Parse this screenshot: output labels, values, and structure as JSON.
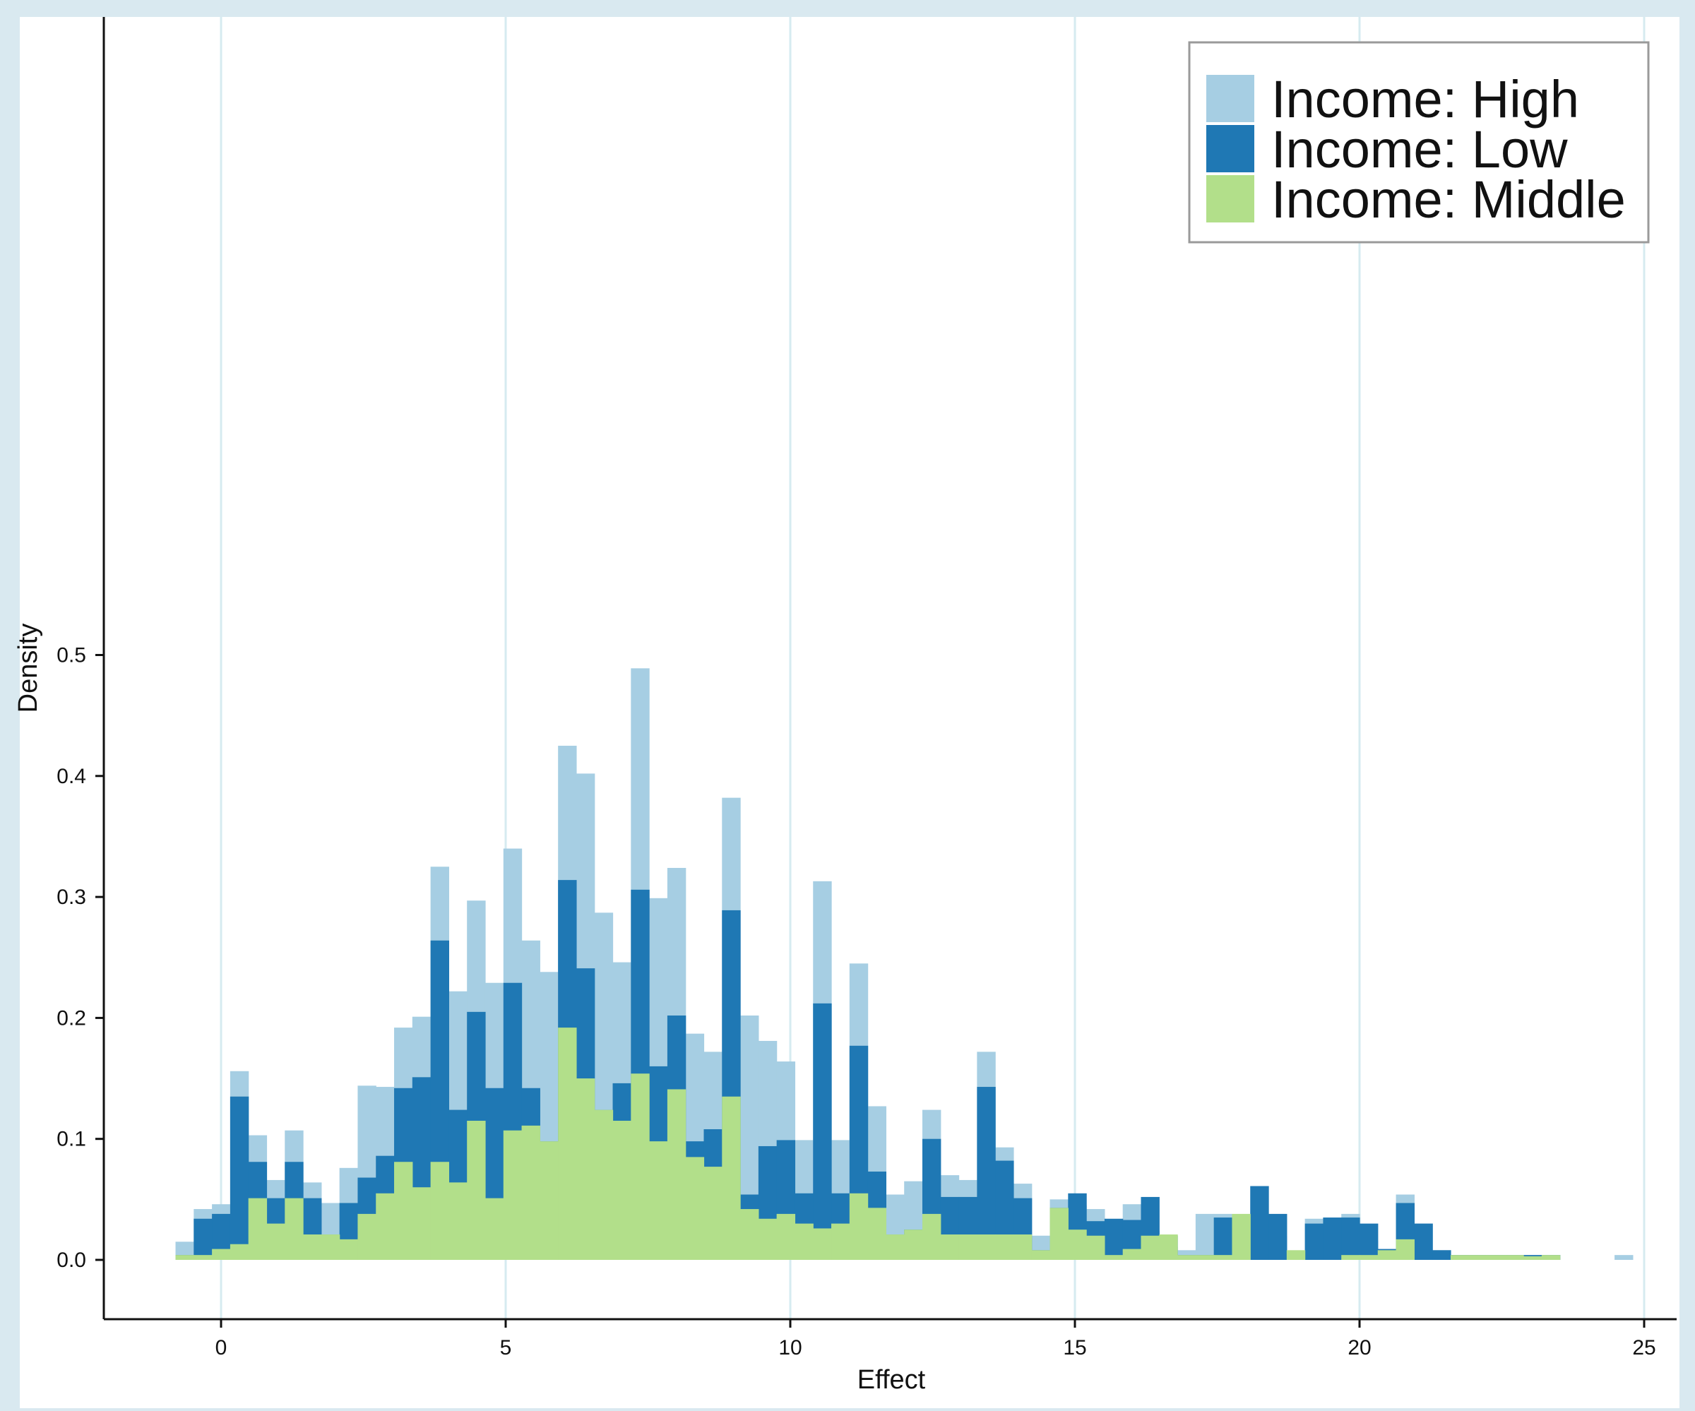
{
  "chart_data": {
    "type": "bar",
    "stacked": false,
    "overlaid": true,
    "bin_width": 0.32,
    "x_start": -0.8,
    "xlabel": "Effect",
    "ylabel": "Density",
    "xlim": [
      -2,
      26
    ],
    "ylim": [
      -0.025,
      0.535
    ],
    "x_ticks": [
      0,
      5,
      10,
      15,
      20,
      25
    ],
    "x_tick_labels": [
      "0",
      "5",
      "10",
      "15",
      "20",
      "25"
    ],
    "y_ticks": [
      0,
      0.1,
      0.2,
      0.3,
      0.4,
      0.5
    ],
    "y_tick_labels": [
      "0.0",
      "0.1",
      "0.2",
      "0.3",
      "0.4",
      "0.5"
    ],
    "grid": "vertical",
    "legend_position": "top-right",
    "series": [
      {
        "name": "Income: High",
        "color": "#a6cee3",
        "values": [
          0.015,
          0.042,
          0.046,
          0.156,
          0.103,
          0.066,
          0.107,
          0.064,
          0.047,
          0.076,
          0.144,
          0.143,
          0.192,
          0.201,
          0.325,
          0.222,
          0.297,
          0.229,
          0.34,
          0.264,
          0.238,
          0.425,
          0.402,
          0.287,
          0.246,
          0.489,
          0.299,
          0.324,
          0.187,
          0.172,
          0.382,
          0.202,
          0.181,
          0.164,
          0.099,
          0.313,
          0.099,
          0.245,
          0.127,
          0.054,
          0.065,
          0.124,
          0.07,
          0.066,
          0.172,
          0.093,
          0.063,
          0.02,
          0.05,
          0.045,
          0.042,
          0.013,
          0.046,
          0.024,
          0.011,
          0.008,
          0.038,
          0.038,
          0,
          0.03,
          0.02,
          0.007,
          0.034,
          0.035,
          0.038,
          0.016,
          0.007,
          0.054,
          0.03,
          0.008,
          0.004,
          0.004,
          0.004,
          0.004,
          0.004,
          0.004,
          0,
          0,
          0,
          0.004
        ]
      },
      {
        "name": "Income: Low",
        "color": "#1f78b4",
        "values": [
          0.004,
          0.034,
          0.038,
          0.135,
          0.081,
          0.051,
          0.081,
          0.051,
          0.021,
          0.047,
          0.068,
          0.086,
          0.142,
          0.151,
          0.264,
          0.124,
          0.205,
          0.142,
          0.229,
          0.142,
          0.098,
          0.314,
          0.241,
          0.124,
          0.146,
          0.306,
          0.16,
          0.202,
          0.098,
          0.108,
          0.289,
          0.054,
          0.094,
          0.099,
          0.055,
          0.212,
          0.055,
          0.177,
          0.073,
          0.021,
          0.025,
          0.1,
          0.052,
          0.052,
          0.143,
          0.082,
          0.051,
          0.008,
          0.043,
          0.055,
          0.032,
          0.034,
          0.033,
          0.052,
          0.02,
          0.004,
          0.004,
          0.035,
          0,
          0.061,
          0.038,
          0.003,
          0.03,
          0.035,
          0.035,
          0.03,
          0.009,
          0.047,
          0.03,
          0.008,
          0.004,
          0.004,
          0.004,
          0.004,
          0.004,
          0.004,
          0,
          0,
          0,
          0
        ]
      },
      {
        "name": "Income: Middle",
        "color": "#b2df8a",
        "values": [
          0.004,
          0.004,
          0.009,
          0.013,
          0.051,
          0.03,
          0.051,
          0.021,
          0.021,
          0.017,
          0.038,
          0.055,
          0.081,
          0.06,
          0.081,
          0.064,
          0.115,
          0.051,
          0.107,
          0.111,
          0.098,
          0.192,
          0.15,
          0.124,
          0.115,
          0.154,
          0.098,
          0.141,
          0.085,
          0.077,
          0.135,
          0.042,
          0.034,
          0.038,
          0.03,
          0.026,
          0.03,
          0.055,
          0.043,
          0.021,
          0.025,
          0.038,
          0.021,
          0.021,
          0.021,
          0.021,
          0.021,
          0.008,
          0.043,
          0.025,
          0.02,
          0.004,
          0.009,
          0.02,
          0.021,
          0.004,
          0.004,
          0.004,
          0.038,
          0,
          0,
          0.008,
          0,
          0,
          0.004,
          0.004,
          0.008,
          0.017,
          0,
          0,
          0.004,
          0.004,
          0.004,
          0.004,
          0.003,
          0.004,
          0,
          0,
          0,
          0
        ]
      }
    ]
  }
}
